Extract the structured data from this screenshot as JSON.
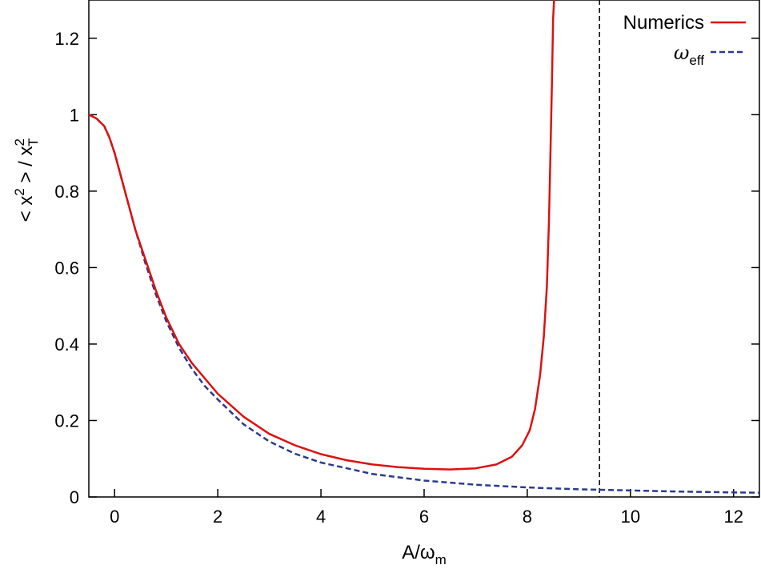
{
  "chart_data": {
    "type": "line",
    "xlabel": "A/ω",
    "xlabel_sub": "m",
    "ylabel": "< x",
    "ylabel_sup": "2",
    "ylabel_mid": " > / x",
    "ylabel_sup2": "2",
    "ylabel_sub2": "T",
    "xlim": [
      -0.5,
      12.5
    ],
    "ylim": [
      0,
      1.3
    ],
    "xticks": [
      0,
      2,
      4,
      6,
      8,
      10,
      12
    ],
    "xtick_labels": [
      "0",
      "2",
      "4",
      "6",
      "8",
      "10",
      "12"
    ],
    "yticks": [
      0,
      0.2,
      0.4,
      0.6,
      0.8,
      1,
      1.2
    ],
    "ytick_labels": [
      "0",
      "0.2",
      "0.4",
      "0.6",
      "0.8",
      "1",
      "1.2"
    ],
    "grid": false,
    "legend_position": "top-right",
    "vline_x": 9.4,
    "series": [
      {
        "name": "Numerics",
        "color": "#dd1111",
        "style": "solid",
        "x": [
          -0.5,
          -0.35,
          -0.2,
          -0.1,
          0.0,
          0.2,
          0.4,
          0.6,
          0.8,
          1.0,
          1.25,
          1.5,
          1.75,
          2.0,
          2.5,
          3.0,
          3.5,
          4.0,
          4.5,
          5.0,
          5.5,
          6.0,
          6.5,
          7.0,
          7.4,
          7.7,
          7.9,
          8.05,
          8.15,
          8.25,
          8.32,
          8.38,
          8.42,
          8.45,
          8.48,
          8.5,
          8.52
        ],
        "y": [
          1.0,
          0.99,
          0.97,
          0.94,
          0.9,
          0.8,
          0.7,
          0.62,
          0.54,
          0.47,
          0.4,
          0.35,
          0.31,
          0.27,
          0.21,
          0.165,
          0.135,
          0.112,
          0.096,
          0.085,
          0.078,
          0.074,
          0.072,
          0.075,
          0.085,
          0.105,
          0.135,
          0.175,
          0.23,
          0.32,
          0.42,
          0.55,
          0.72,
          0.9,
          1.1,
          1.25,
          1.3
        ]
      },
      {
        "name": "ω",
        "name_sub": "eff",
        "color": "#2b3a8f",
        "style": "dashed",
        "x": [
          -0.5,
          -0.35,
          -0.2,
          -0.1,
          0.0,
          0.2,
          0.4,
          0.6,
          0.8,
          1.0,
          1.25,
          1.5,
          1.75,
          2.0,
          2.5,
          3.0,
          3.5,
          4.0,
          5.0,
          6.0,
          7.0,
          8.0,
          9.0,
          10.0,
          11.0,
          12.0,
          12.5
        ],
        "y": [
          1.0,
          0.99,
          0.97,
          0.94,
          0.9,
          0.8,
          0.7,
          0.61,
          0.53,
          0.46,
          0.39,
          0.335,
          0.29,
          0.255,
          0.19,
          0.145,
          0.113,
          0.09,
          0.06,
          0.043,
          0.032,
          0.025,
          0.02,
          0.017,
          0.014,
          0.012,
          0.011
        ]
      }
    ]
  }
}
